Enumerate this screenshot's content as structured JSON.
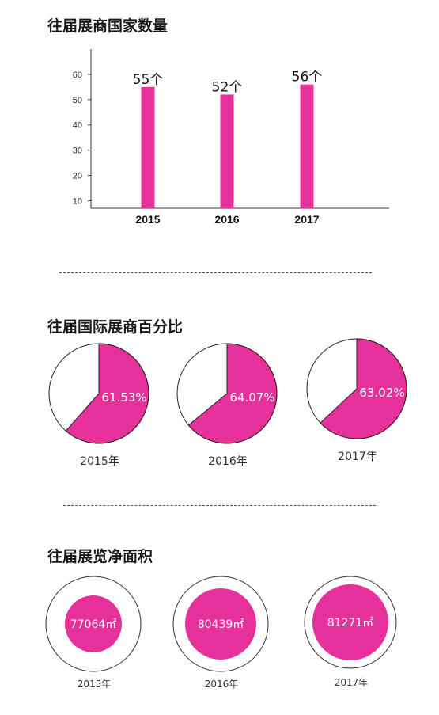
{
  "accent": "#e6309a",
  "sections": [
    {
      "title": "往届展商国家数量"
    },
    {
      "title": "往届国际展商百分比"
    },
    {
      "title": "往届展览净面积"
    }
  ],
  "chart_data": [
    {
      "type": "bar",
      "categories": [
        "2015",
        "2016",
        "2017"
      ],
      "values": [
        55,
        52,
        56
      ],
      "data_labels": [
        "55个",
        "52个",
        "56个"
      ],
      "yticks": [
        10,
        20,
        30,
        40,
        50,
        60
      ],
      "ylim": [
        7,
        70
      ],
      "color": "#e6309a"
    },
    {
      "type": "pie",
      "slices": [
        {
          "year": "2015年",
          "value": 61.53,
          "label": "61.53%"
        },
        {
          "year": "2016年",
          "value": 64.07,
          "label": "64.07%"
        },
        {
          "year": "2017年",
          "value": 63.02,
          "label": "63.02%"
        }
      ],
      "color": "#e6309a"
    },
    {
      "type": "bubble",
      "items": [
        {
          "year": "2015年",
          "value": 77064,
          "label": "77064㎡"
        },
        {
          "year": "2016年",
          "value": 80439,
          "label": "80439㎡"
        },
        {
          "year": "2017年",
          "value": 81271,
          "label": "81271㎡"
        }
      ],
      "color": "#e6309a"
    }
  ]
}
